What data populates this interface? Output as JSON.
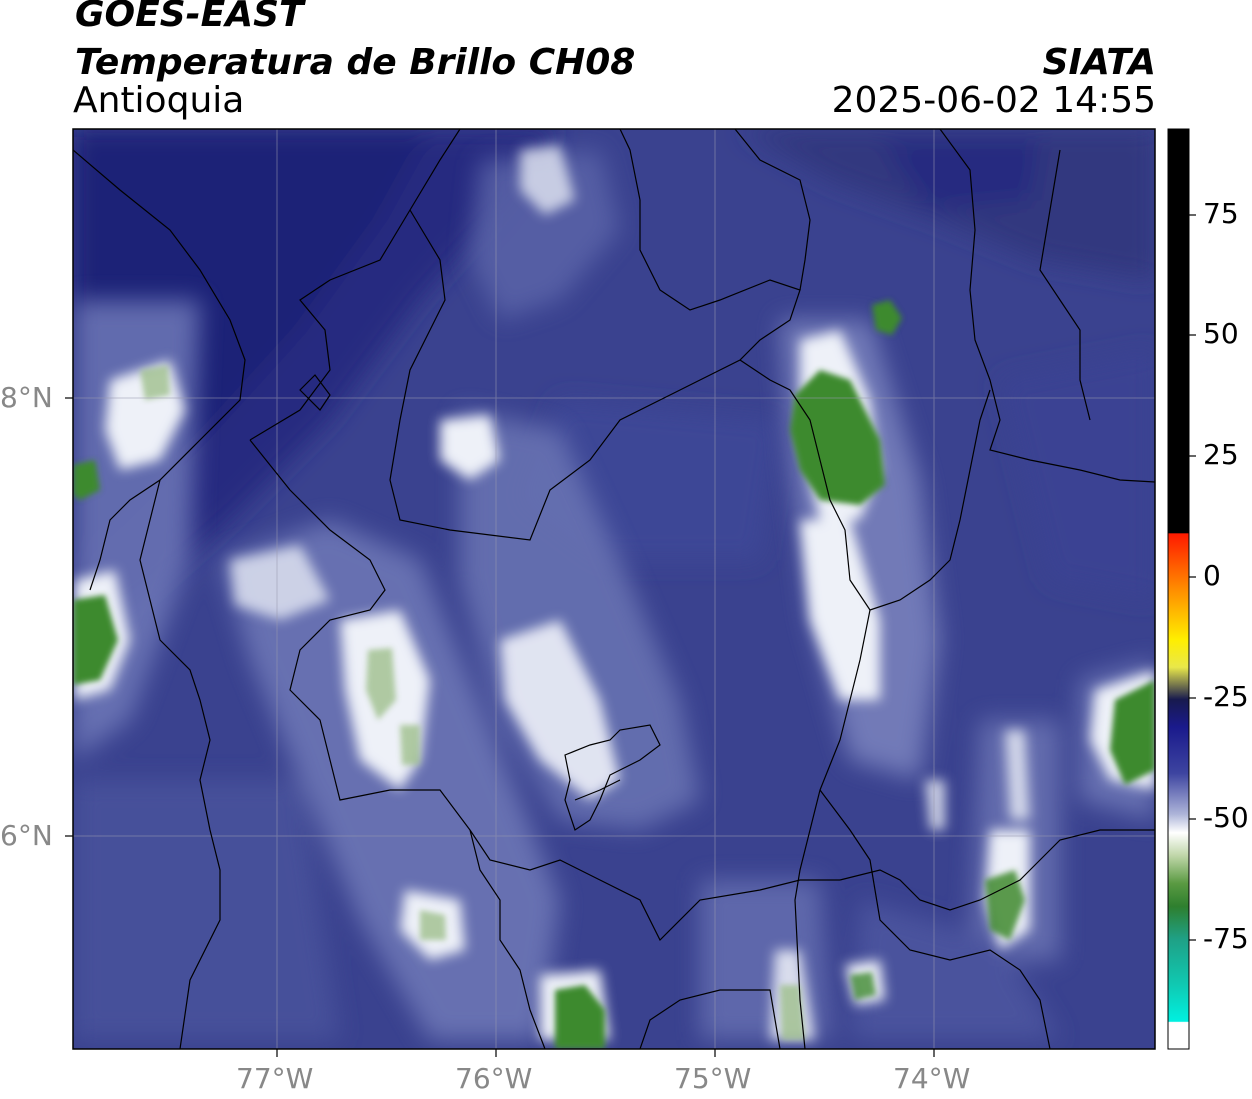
{
  "title": {
    "line1": "GOES-EAST",
    "line2": "Temperatura de Brillo CH08",
    "line3": "Antioquia",
    "source": "SIATA",
    "datetime": "2025-06-02 14:55"
  },
  "axes": {
    "lon_labels": [
      "77°W",
      "76°W",
      "75°W",
      "74°W"
    ],
    "lat_labels": [
      "8°N",
      "6°N"
    ]
  },
  "colorbar": {
    "ticks": [
      "75",
      "50",
      "25",
      "0",
      "-25",
      "-50",
      "-75"
    ]
  },
  "colors": {
    "background_field": "#3a428f",
    "deep_blue": "#252a80",
    "white_cloud": "#f4f6fb",
    "green_core": "#3e8a2e",
    "frame": "#000000"
  }
}
